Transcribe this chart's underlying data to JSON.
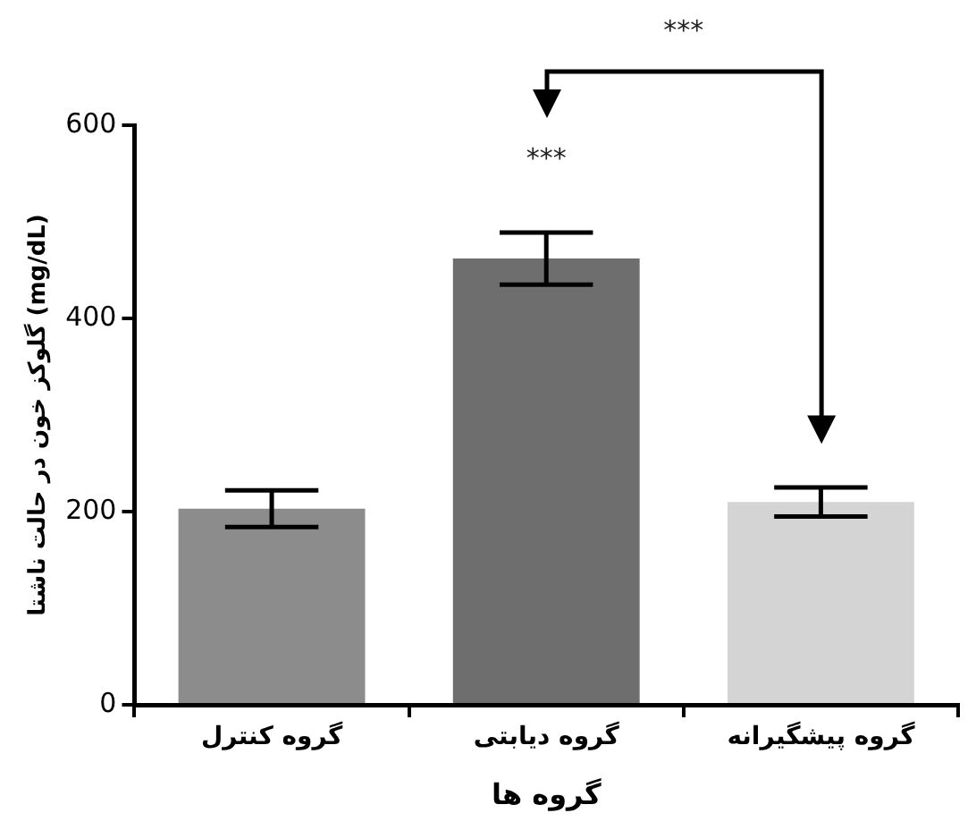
{
  "chart_data": {
    "type": "bar",
    "xlabel": "گروه ها",
    "ylabel": "گلوکز خون در حالت ناشتا (mg/dL)",
    "categories": [
      "گروه کنترل",
      "گروه دیابتی",
      "گروه پیشگیرانه"
    ],
    "values": [
      203,
      462,
      210
    ],
    "errors": [
      19,
      27,
      15
    ],
    "colors": [
      "#8c8c8c",
      "#6e6e6e",
      "#d4d4d4"
    ],
    "ylim": [
      0,
      600
    ],
    "yticks": [
      0,
      200,
      400,
      600
    ],
    "grid": false,
    "legend": false,
    "annotations": [
      "***",
      "***"
    ]
  }
}
